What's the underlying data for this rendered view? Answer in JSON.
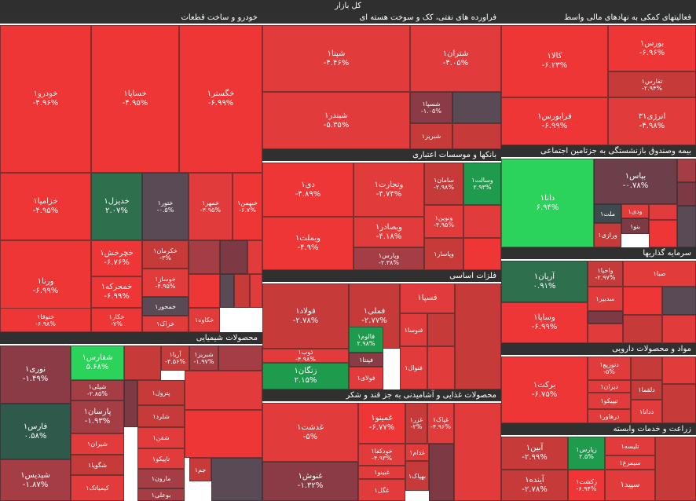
{
  "market_title": "کل بازار",
  "colors": {
    "strong_red": "#ef3636",
    "red": "#e23b3b",
    "dark_red": "#c63a3a",
    "muted_red": "#a53d45",
    "maroon": "#7d3a44",
    "slate": "#4f4b55",
    "dark_green": "#2e6f4d",
    "green": "#1f9b4e",
    "bright_green": "#2bd35a"
  },
  "sectors": [
    {
      "title": "خودرو و ساخت قطعات",
      "tiles": [
        {
          "name": "خودرو۱",
          "change": "-۴.۹۶%",
          "color": "#ef3636"
        },
        {
          "name": "خساپا۱",
          "change": "-۴.۹۵%",
          "color": "#ef3636"
        },
        {
          "name": "خگستر۱",
          "change": "-۶.۹۹%",
          "color": "#ef3636"
        },
        {
          "name": "خزامیا۱",
          "change": "-۴.۹۵%",
          "color": "#ef3636"
        },
        {
          "name": "خدیزل۱",
          "change": "۲.۰۷%",
          "color": "#2e6f4d"
        },
        {
          "name": "ختور۱",
          "change": "-۰.۵%",
          "color": "#5a4a55"
        },
        {
          "name": "خمهر۱",
          "change": "-۴.۹۵%",
          "color": "#e23b3b"
        },
        {
          "name": "خبهمن۱",
          "change": "-۶.۷%",
          "color": "#ef3636"
        },
        {
          "name": "ورنا۱",
          "change": "-۶.۹۹%",
          "color": "#ef3636"
        },
        {
          "name": "خچرخش۱",
          "change": "-۶.۷۶%",
          "color": "#ef3636"
        },
        {
          "name": "خکرمان۱",
          "change": "-۳%",
          "color": "#c63a3a"
        },
        {
          "name": "خمحرکه۱",
          "change": "-۶.۹۹%",
          "color": "#ef3636"
        },
        {
          "name": "خوساز۱",
          "change": "-۴.۹۵%",
          "color": "#e23b3b"
        },
        {
          "name": "ختوقا۱",
          "change": "-۶.۹۸%",
          "color": "#ef3636"
        },
        {
          "name": "خکار۱",
          "change": "-۷%",
          "color": "#ef3636"
        },
        {
          "name": "خمحور۱",
          "change": "",
          "color": "#5a4a55"
        },
        {
          "name": "خزاک۱",
          "change": "",
          "color": "#e23b3b"
        },
        {
          "name": "خکاوه۱",
          "change": "",
          "color": "#e23b3b"
        }
      ]
    },
    {
      "title": "فراورده های نفتی، کک و سوخت هسته ای",
      "tiles": [
        {
          "name": "شپنا۱",
          "change": "-۴.۴۶%",
          "color": "#e23b3b"
        },
        {
          "name": "شتران۱",
          "change": "-۴.۰۵%",
          "color": "#e23b3b"
        },
        {
          "name": "شبندر۱",
          "change": "-۵.۳۵%",
          "color": "#e23b3b"
        },
        {
          "name": "شسپا۱",
          "change": "-۱.۰۵%",
          "color": "#8a3b45"
        },
        {
          "name": "شبریز۱",
          "change": "",
          "color": "#c63a3a"
        }
      ]
    },
    {
      "title": "فعالیتهای کمکی به نهادهای مالی واسط",
      "tiles": [
        {
          "name": "کالا۱",
          "change": "-۶.۲۳%",
          "color": "#ef3636"
        },
        {
          "name": "بورس۱",
          "change": "-۶.۹۶%",
          "color": "#ef3636"
        },
        {
          "name": "تفارس۱",
          "change": "-۲.۹۴%",
          "color": "#c63a3a"
        },
        {
          "name": "فرابورس۱",
          "change": "-۶.۹۹%",
          "color": "#ef3636"
        },
        {
          "name": "انرژی۳۱",
          "change": "-۴.۹۸%",
          "color": "#e23b3b"
        }
      ]
    },
    {
      "title": "بانکها و موسسات اعتباری",
      "tiles": [
        {
          "name": "دی۱",
          "change": "-۴.۸۹%",
          "color": "#ef3636"
        },
        {
          "name": "وتجارت۱",
          "change": "-۴.۷۴%",
          "color": "#e23b3b"
        },
        {
          "name": "سامان۱",
          "change": "-۲.۹۸%",
          "color": "#c63a3a"
        },
        {
          "name": "وسالت۱",
          "change": "۲.۹۳%",
          "color": "#1f9b4e"
        },
        {
          "name": "وبصادر۱",
          "change": "-۴.۱۸%",
          "color": "#e23b3b"
        },
        {
          "name": "ونوین۱",
          "change": "-۴.۹۵%",
          "color": "#e23b3b"
        },
        {
          "name": "وبملت۱",
          "change": "-۴.۹%",
          "color": "#ef3636"
        },
        {
          "name": "وپارس۱",
          "change": "-۲.۳۸%",
          "color": "#a53d45"
        },
        {
          "name": "وپاسار۱",
          "change": "",
          "color": "#c63a3a"
        }
      ]
    },
    {
      "title": "بیمه وصندوق بازنشستگی به جزتامین اجتماعی",
      "tiles": [
        {
          "name": "دانا۱",
          "change": "۶.۹۴%",
          "color": "#2bd35a"
        },
        {
          "name": "بپاس۱",
          "change": "-۰.۷۸%",
          "color": "#6d3f4b"
        },
        {
          "name": "ملت۱",
          "change": "",
          "color": "#3f4a4f"
        },
        {
          "name": "ودی۱",
          "change": "",
          "color": "#e23b3b"
        },
        {
          "name": "بنو۱",
          "change": "",
          "color": "#7d3a44"
        },
        {
          "name": "ورازی۱",
          "change": "",
          "color": "#c63a3a"
        }
      ]
    },
    {
      "title": "فلزات اساسی",
      "tiles": [
        {
          "name": "فولاد۱",
          "change": "-۲.۷۸%",
          "color": "#c63a3a"
        },
        {
          "name": "فملی۱",
          "change": "-۲.۷۷%",
          "color": "#c63a3a"
        },
        {
          "name": "فسپا۱",
          "change": "",
          "color": "#e23b3b"
        },
        {
          "name": "ذوب۱",
          "change": "-۴.۹۸%",
          "color": "#e23b3b"
        },
        {
          "name": "فالوم۱",
          "change": "۲.۹۸%",
          "color": "#1f9b4e"
        },
        {
          "name": "فپنتا۱",
          "change": "",
          "color": "#8a3b45"
        },
        {
          "name": "فنوسا۱",
          "change": "",
          "color": "#e23b3b"
        },
        {
          "name": "زنگان۱",
          "change": "۲.۱۵%",
          "color": "#1f9b4e"
        },
        {
          "name": "فولای۱",
          "change": "",
          "color": "#e23b3b"
        },
        {
          "name": "فنوال۱",
          "change": "",
          "color": "#e23b3b"
        }
      ]
    },
    {
      "title": "سرمایه گذاریها",
      "tiles": [
        {
          "name": "آریان۱",
          "change": "۰.۹۱%",
          "color": "#2e6f4d"
        },
        {
          "name": "واحیا۱",
          "change": "-۲.۹۷%",
          "color": "#c63a3a"
        },
        {
          "name": "صبا۱",
          "change": "",
          "color": "#e23b3b"
        },
        {
          "name": "وساپا۱",
          "change": "-۶.۹۹%",
          "color": "#ef3636"
        },
        {
          "name": "سدبیر۱",
          "change": "",
          "color": "#e23b3b"
        }
      ]
    },
    {
      "title": "محصولات شیمیایی",
      "tiles": [
        {
          "name": "نوری۱",
          "change": "-۱.۴۹%",
          "color": "#8a3b45"
        },
        {
          "name": "شفارس۱",
          "change": "۵.۶۸%",
          "color": "#2bd35a"
        },
        {
          "name": "آریا۱",
          "change": "-۳.۵۶%",
          "color": "#c63a3a"
        },
        {
          "name": "شبریز۱",
          "change": "-۱.۹۷%",
          "color": "#a53d45"
        },
        {
          "name": "شپلی۱",
          "change": "-۲.۸۵%",
          "color": "#a53d45"
        },
        {
          "name": "پترول۱",
          "change": "",
          "color": "#c63a3a"
        },
        {
          "name": "فارس۱",
          "change": "۰.۵۸%",
          "color": "#2f5a4b"
        },
        {
          "name": "پارسان۱",
          "change": "-۱.۹۳%",
          "color": "#a53d45"
        },
        {
          "name": "شلرد۱",
          "change": "",
          "color": "#c63a3a"
        },
        {
          "name": "شیران۱",
          "change": "",
          "color": "#e23b3b"
        },
        {
          "name": "شفن۱",
          "change": "",
          "color": "#e23b3b"
        },
        {
          "name": "تاپیکو۱",
          "change": "",
          "color": "#e23b3b"
        },
        {
          "name": "شگویا۱",
          "change": "",
          "color": "#c63a3a"
        },
        {
          "name": "شپدیس۱",
          "change": "-۱.۸۷%",
          "color": "#a53d45"
        },
        {
          "name": "مارون۱",
          "change": "",
          "color": "#a53d45"
        },
        {
          "name": "کیمیاتک۱",
          "change": "",
          "color": "#e23b3b"
        },
        {
          "name": "بوعلی۱",
          "change": "",
          "color": "#a53d45"
        },
        {
          "name": "جم۱",
          "change": "",
          "color": "#c63a3a"
        }
      ]
    },
    {
      "title": "مواد و محصولات دارویی",
      "tiles": [
        {
          "name": "برکت۱",
          "change": "-۶.۷۵%",
          "color": "#ef3636"
        },
        {
          "name": "دتوزیع۱",
          "change": "-۵%",
          "color": "#e23b3b"
        },
        {
          "name": "دیران۱",
          "change": "",
          "color": "#e23b3b"
        },
        {
          "name": "دلقما۱",
          "change": "",
          "color": "#c63a3a"
        },
        {
          "name": "تیپیکو۱",
          "change": "",
          "color": "#e23b3b"
        },
        {
          "name": "درهاور۱",
          "change": "",
          "color": "#e23b3b"
        },
        {
          "name": "ددانا۱",
          "change": "",
          "color": "#e23b3b"
        }
      ]
    },
    {
      "title": "محصولات غذایی و آشامیدنی به جز قند و شکر",
      "tiles": [
        {
          "name": "غدشت۱",
          "change": "-۵%",
          "color": "#e23b3b"
        },
        {
          "name": "غمینو۱",
          "change": "-۶.۷۷%",
          "color": "#ef3636"
        },
        {
          "name": "غزر۱",
          "change": "-۲%",
          "color": "#c63a3a"
        },
        {
          "name": "غپاک۱",
          "change": "-۴.۹۶%",
          "color": "#e23b3b"
        },
        {
          "name": "خودکفا۱",
          "change": "-۴.۹۳%",
          "color": "#e23b3b"
        },
        {
          "name": "غدام۱",
          "change": "",
          "color": "#e23b3b"
        },
        {
          "name": "غبینو۱",
          "change": "",
          "color": "#e23b3b"
        },
        {
          "name": "غنوش۱",
          "change": "-۱.۳۲%",
          "color": "#8a3b45"
        },
        {
          "name": "بهپاک۱",
          "change": "",
          "color": "#c63a3a"
        },
        {
          "name": "غگل۱",
          "change": "",
          "color": "#e23b3b"
        }
      ]
    },
    {
      "title": "زراعت و خدمات وابسته",
      "tiles": [
        {
          "name": "آبین۱",
          "change": "-۲.۹۹%",
          "color": "#c63a3a"
        },
        {
          "name": "زپارس۱",
          "change": "۲.۵%",
          "color": "#1f9b4e"
        },
        {
          "name": "تلیسه۱",
          "change": "",
          "color": "#e23b3b"
        },
        {
          "name": "سیمرغ۱",
          "change": "",
          "color": "#e23b3b"
        },
        {
          "name": "آینده۱",
          "change": "-۲.۷۸%",
          "color": "#c63a3a"
        },
        {
          "name": "زکشت۱",
          "change": "-۶.۹۴%",
          "color": "#ef3636"
        },
        {
          "name": "سپید۱",
          "change": "",
          "color": "#e23b3b"
        }
      ]
    }
  ]
}
